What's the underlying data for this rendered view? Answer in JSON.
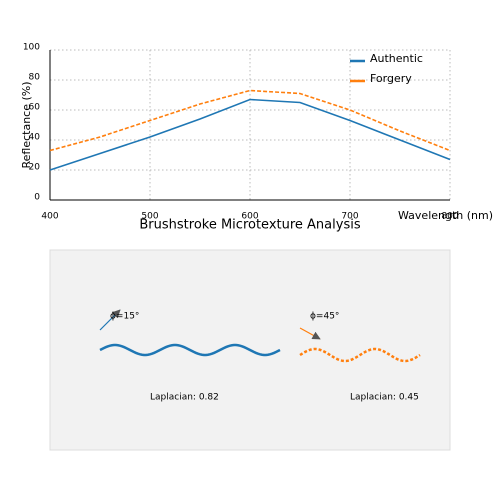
{
  "chart_data": {
    "type": "line",
    "x": [
      400,
      450,
      500,
      550,
      600,
      650,
      700,
      750,
      800
    ],
    "series": [
      {
        "name": "Authentic",
        "color": "#1f77b4",
        "style": "solid",
        "values": [
          20,
          31,
          42,
          54,
          67,
          65,
          53,
          40,
          27
        ]
      },
      {
        "name": "Forgery",
        "color": "#ff7f0e",
        "style": "dashed",
        "values": [
          33,
          42,
          53,
          64,
          73,
          71,
          60,
          46,
          33
        ]
      }
    ],
    "xlabel": "Wavelength (nm)",
    "ylabel": "Reflectance (%)",
    "xlim": [
      400,
      800
    ],
    "ylim": [
      0,
      100
    ],
    "xticks": [
      400,
      500,
      600,
      700,
      800
    ],
    "yticks": [
      0,
      20,
      40,
      60,
      80,
      100
    ],
    "grid": true,
    "legend": "upper right"
  },
  "diagram": {
    "title": "Brushstroke Microtexture Analysis",
    "samples": [
      {
        "angle": "ϕ=15°",
        "metric": "Laplacian: 0.82"
      },
      {
        "angle": "ϕ=45°",
        "metric": "Laplacian: 0.45"
      }
    ]
  }
}
